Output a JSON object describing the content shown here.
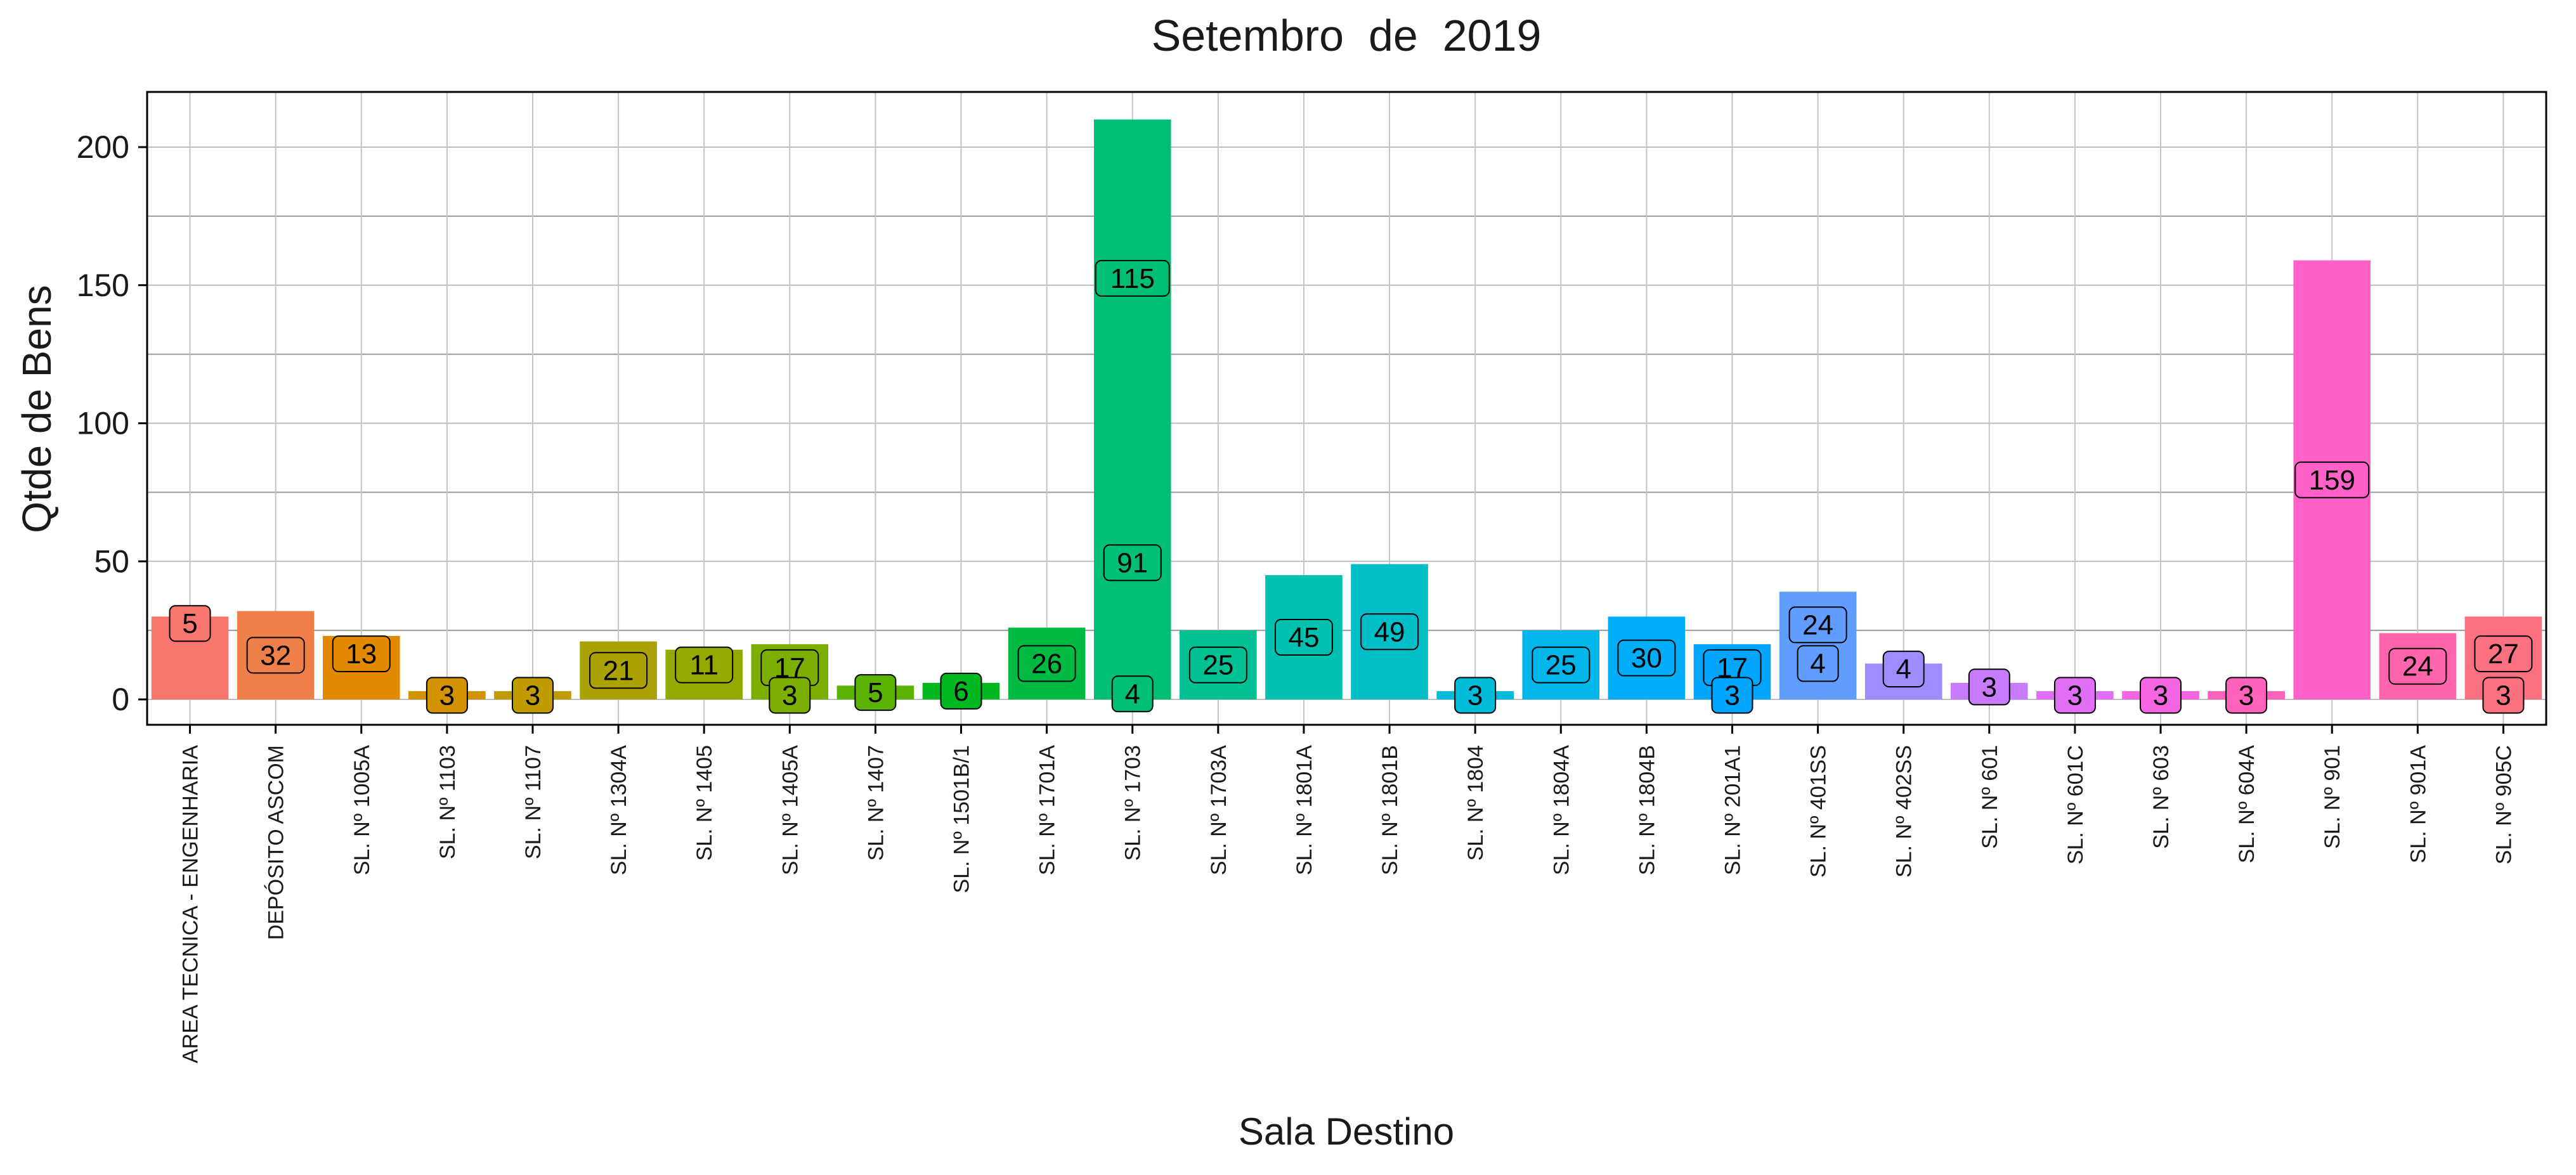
{
  "chart_data": {
    "type": "bar",
    "title": "Setembro  de  2019",
    "xlabel": "Sala Destino",
    "ylabel": "Qtde de Bens",
    "ylim": [
      -10,
      220
    ],
    "yticks": [
      0,
      50,
      100,
      150,
      200
    ],
    "grid": true,
    "legend": "none",
    "categories": [
      "AREA TECNICA - ENGENHARIA",
      "DEPÓSITO ASCOM",
      "SL. Nº 1005A",
      "SL. Nº 1103",
      "SL. Nº 1107",
      "SL. Nº 1304A",
      "SL. Nº 1405",
      "SL. Nº 1405A",
      "SL. Nº 1407",
      "SL. Nº 1501B/1",
      "SL. Nº 1701A",
      "SL. Nº 1703",
      "SL. Nº 1703A",
      "SL. Nº 1801A",
      "SL. Nº 1801B",
      "SL. Nº 1804",
      "SL. Nº 1804A",
      "SL. Nº 1804B",
      "SL. Nº 201A1",
      "SL. Nº 401SS",
      "SL. Nº 402SS",
      "SL. Nº 601",
      "SL. Nº 601C",
      "SL. Nº 603",
      "SL. Nº 604A",
      "SL. Nº 901",
      "SL. Nº 901A",
      "SL. Nº 905C"
    ],
    "values": [
      30,
      32,
      23,
      3,
      3,
      21,
      18,
      20,
      5,
      6,
      26,
      210,
      25,
      45,
      49,
      3,
      25,
      30,
      20,
      39,
      13,
      6,
      3,
      3,
      3,
      159,
      24,
      30
    ],
    "colors": [
      "#F8766D",
      "#EF7F49",
      "#E38900",
      "#D39200",
      "#C09B00",
      "#AAA200",
      "#93AA00",
      "#7CAE00",
      "#5BB300",
      "#00B81F",
      "#00BA42",
      "#00BF74",
      "#00C094",
      "#00C0AF",
      "#00BEC8",
      "#00BCD8",
      "#00B6EB",
      "#00ADF8",
      "#00A5FF",
      "#619CFF",
      "#9F8CFF",
      "#C77CFF",
      "#E36EF6",
      "#F564E3",
      "#FF62BC",
      "#FF61C9",
      "#FF65AC",
      "#FC717F"
    ],
    "data_labels": [
      {
        "cat": 0,
        "values": [
          "5"
        ]
      },
      {
        "cat": 1,
        "values": [
          "32"
        ]
      },
      {
        "cat": 2,
        "values": [
          "13"
        ]
      },
      {
        "cat": 3,
        "values": [
          "3"
        ]
      },
      {
        "cat": 4,
        "values": [
          "3"
        ]
      },
      {
        "cat": 5,
        "values": [
          "21"
        ]
      },
      {
        "cat": 6,
        "values": [
          "11"
        ]
      },
      {
        "cat": 7,
        "values": [
          "17",
          "3"
        ]
      },
      {
        "cat": 8,
        "values": [
          "5"
        ]
      },
      {
        "cat": 9,
        "values": [
          "6"
        ]
      },
      {
        "cat": 10,
        "values": [
          "26"
        ]
      },
      {
        "cat": 11,
        "values": [
          "115",
          "91",
          "4"
        ]
      },
      {
        "cat": 12,
        "values": [
          "25"
        ]
      },
      {
        "cat": 13,
        "values": [
          "45"
        ]
      },
      {
        "cat": 14,
        "values": [
          "49"
        ]
      },
      {
        "cat": 15,
        "values": [
          "3"
        ]
      },
      {
        "cat": 16,
        "values": [
          "25"
        ]
      },
      {
        "cat": 17,
        "values": [
          "30"
        ]
      },
      {
        "cat": 18,
        "values": [
          "17",
          "3"
        ]
      },
      {
        "cat": 19,
        "values": [
          "24",
          "4"
        ]
      },
      {
        "cat": 20,
        "values": [
          "4"
        ]
      },
      {
        "cat": 21,
        "values": [
          "3"
        ]
      },
      {
        "cat": 22,
        "values": [
          "3"
        ]
      },
      {
        "cat": 23,
        "values": [
          "3"
        ]
      },
      {
        "cat": 24,
        "values": [
          "3"
        ]
      },
      {
        "cat": 25,
        "values": [
          "159"
        ]
      },
      {
        "cat": 26,
        "values": [
          "24"
        ]
      },
      {
        "cat": 27,
        "values": [
          "27",
          "3"
        ]
      }
    ]
  }
}
